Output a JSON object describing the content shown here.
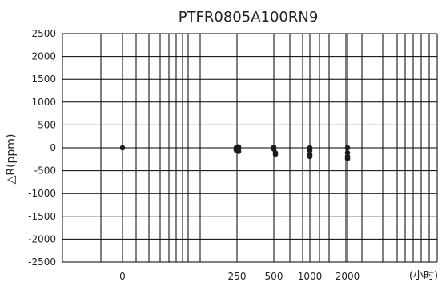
{
  "chart_data": {
    "type": "scatter",
    "title": "PTFR0805A100RN9",
    "xlabel": "(小时)",
    "ylabel": "△R(ppm)",
    "x_scale": "log-like",
    "x_tick_labels": [
      "0",
      "250",
      "500",
      "1000",
      "2000"
    ],
    "y_ticks": [
      2500,
      2000,
      1500,
      1000,
      500,
      0,
      -500,
      -1000,
      -1500,
      -2000,
      -2500
    ],
    "ylim": [
      -2500,
      2500
    ],
    "grid": true,
    "marker_color": "#1a1a1a",
    "series": [
      {
        "points": [
          {
            "x": "0",
            "y": 0
          },
          {
            "x": "250",
            "y": 20
          },
          {
            "x": "250",
            "y": 0
          },
          {
            "x": "250",
            "y": -20
          },
          {
            "x": "250",
            "y": -50
          },
          {
            "x": "250",
            "y": -80
          },
          {
            "x": "500",
            "y": 10
          },
          {
            "x": "500",
            "y": -30
          },
          {
            "x": "500",
            "y": -110
          },
          {
            "x": "500",
            "y": -140
          },
          {
            "x": "1000",
            "y": 0
          },
          {
            "x": "1000",
            "y": -60
          },
          {
            "x": "1000",
            "y": -150
          },
          {
            "x": "1000",
            "y": -190
          },
          {
            "x": "2000",
            "y": 0
          },
          {
            "x": "2000",
            "y": -110
          },
          {
            "x": "2000",
            "y": -190
          },
          {
            "x": "2000",
            "y": -240
          }
        ]
      }
    ]
  }
}
